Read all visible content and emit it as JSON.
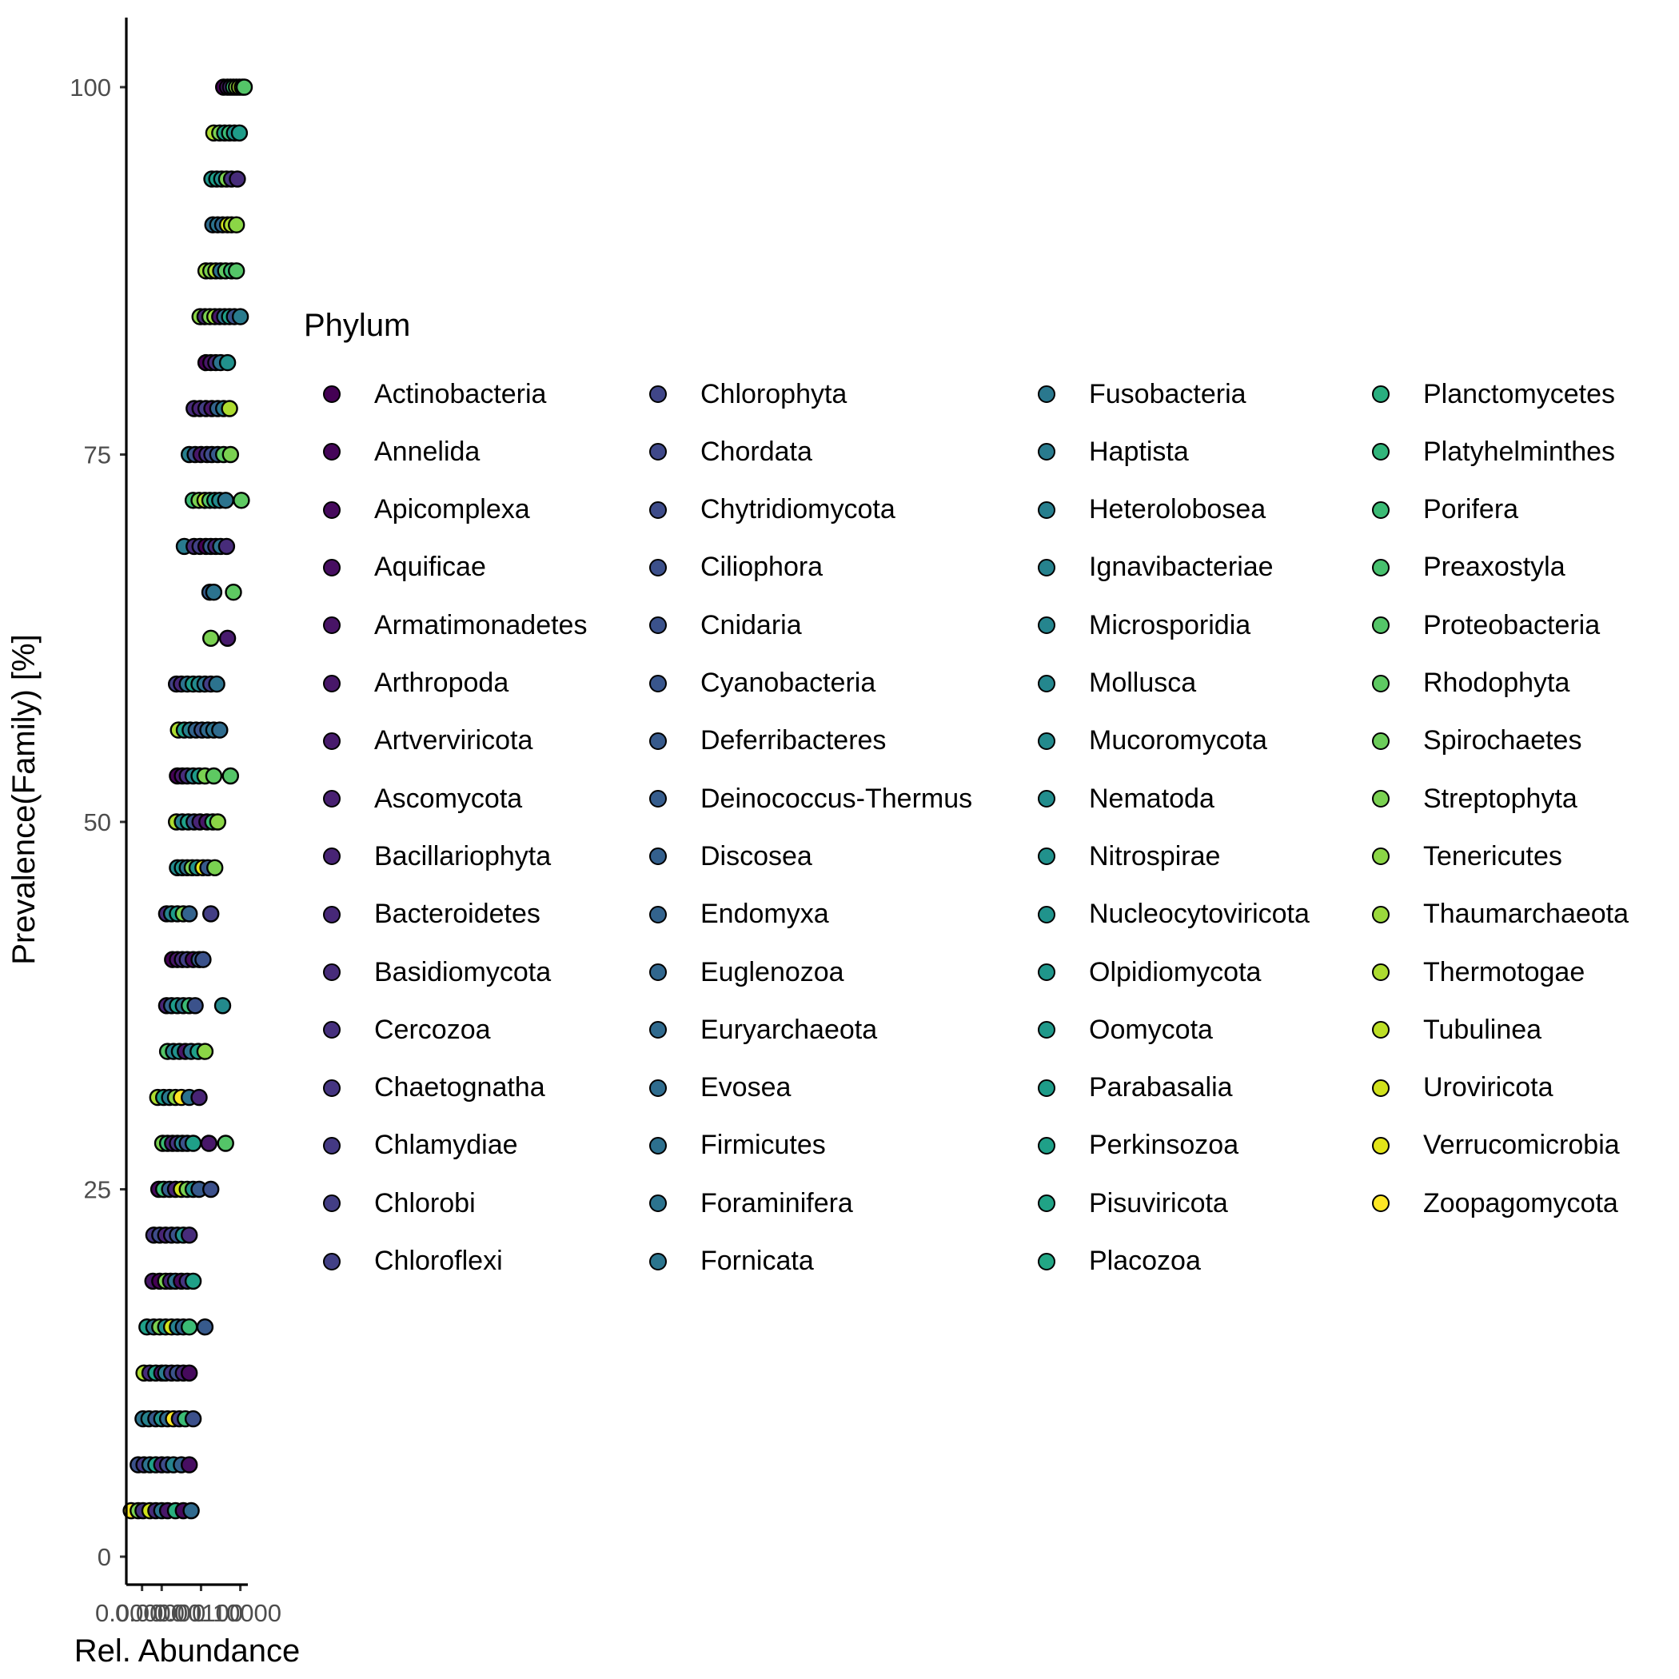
{
  "chart_data": {
    "type": "scatter",
    "xlabel": "Rel. Abundance",
    "ylabel": "Prevalence(Family) [%]",
    "xtick_labels_overlapping": [
      "0.00000",
      "0.00001",
      "0.00100",
      "0.10000"
    ],
    "y_ticks": [
      0,
      25,
      50,
      75,
      100
    ],
    "ylim": [
      -2,
      105
    ],
    "x_scale": "log10",
    "xlim_log10": [
      -6.8,
      -0.7
    ],
    "grid": false,
    "legend": {
      "title": "Phylum",
      "placement": "right",
      "columns": 4,
      "entries": [
        {
          "name": "Actinobacteria",
          "color": "#440154"
        },
        {
          "name": "Annelida",
          "color": "#450559"
        },
        {
          "name": "Apicomplexa",
          "color": "#460a5d"
        },
        {
          "name": "Aquificae",
          "color": "#470e61"
        },
        {
          "name": "Armatimonadetes",
          "color": "#481466"
        },
        {
          "name": "Arthropoda",
          "color": "#481769"
        },
        {
          "name": "Artverviricota",
          "color": "#481b6d"
        },
        {
          "name": "Ascomycota",
          "color": "#482071"
        },
        {
          "name": "Bacillariophyta",
          "color": "#482475"
        },
        {
          "name": "Bacteroidetes",
          "color": "#472878"
        },
        {
          "name": "Basidiomycota",
          "color": "#472c7a"
        },
        {
          "name": "Cercozoa",
          "color": "#46307e"
        },
        {
          "name": "Chaetognatha",
          "color": "#453581"
        },
        {
          "name": "Chlamydiae",
          "color": "#443983"
        },
        {
          "name": "Chlorobi",
          "color": "#433e85"
        },
        {
          "name": "Chloroflexi",
          "color": "#424086"
        },
        {
          "name": "Chlorophyta",
          "color": "#404688"
        },
        {
          "name": "Chordata",
          "color": "#3f4889"
        },
        {
          "name": "Chytridiomycota",
          "color": "#3e4c8a"
        },
        {
          "name": "Ciliophora",
          "color": "#3c508b"
        },
        {
          "name": "Cnidaria",
          "color": "#3b528b"
        },
        {
          "name": "Cyanobacteria",
          "color": "#39568c"
        },
        {
          "name": "Deferribacteres",
          "color": "#375a8c"
        },
        {
          "name": "Deinococcus-Thermus",
          "color": "#365d8d"
        },
        {
          "name": "Discosea",
          "color": "#34608d"
        },
        {
          "name": "Endomyxa",
          "color": "#33638d"
        },
        {
          "name": "Euglenozoa",
          "color": "#31678e"
        },
        {
          "name": "Euryarchaeota",
          "color": "#306a8e"
        },
        {
          "name": "Evosea",
          "color": "#2f6c8e"
        },
        {
          "name": "Firmicutes",
          "color": "#2d708e"
        },
        {
          "name": "Foraminifera",
          "color": "#2c738e"
        },
        {
          "name": "Fornicata",
          "color": "#2b758e"
        },
        {
          "name": "Fusobacteria",
          "color": "#2a788e"
        },
        {
          "name": "Haptista",
          "color": "#297b8e"
        },
        {
          "name": "Heterolobosea",
          "color": "#277f8e"
        },
        {
          "name": "Ignavibacteriae",
          "color": "#26828e"
        },
        {
          "name": "Microsporidia",
          "color": "#25858e"
        },
        {
          "name": "Mollusca",
          "color": "#24878e"
        },
        {
          "name": "Mucoromycota",
          "color": "#238a8d"
        },
        {
          "name": "Nematoda",
          "color": "#228d8d"
        },
        {
          "name": "Nitrospirae",
          "color": "#21918c"
        },
        {
          "name": "Nucleocytoviricota",
          "color": "#20938c"
        },
        {
          "name": "Olpidiomycota",
          "color": "#1f968b"
        },
        {
          "name": "Oomycota",
          "color": "#1f998a"
        },
        {
          "name": "Parabasalia",
          "color": "#1e9c89"
        },
        {
          "name": "Perkinsozoa",
          "color": "#1fa088"
        },
        {
          "name": "Pisuviricota",
          "color": "#20a386"
        },
        {
          "name": "Placozoa",
          "color": "#22a785"
        },
        {
          "name": "Planctomycetes",
          "color": "#29af7f"
        },
        {
          "name": "Platyhelminthes",
          "color": "#31b57b"
        },
        {
          "name": "Porifera",
          "color": "#3bbb75"
        },
        {
          "name": "Preaxostyla",
          "color": "#47c16e"
        },
        {
          "name": "Proteobacteria",
          "color": "#54c568"
        },
        {
          "name": "Rhodophyta",
          "color": "#5ec962"
        },
        {
          "name": "Spirochaetes",
          "color": "#6ccd5a"
        },
        {
          "name": "Streptophyta",
          "color": "#7ad151"
        },
        {
          "name": "Tenericutes",
          "color": "#8bd646"
        },
        {
          "name": "Thaumarchaeota",
          "color": "#9bd93c"
        },
        {
          "name": "Thermotogae",
          "color": "#addc30"
        },
        {
          "name": "Tubulinea",
          "color": "#bddf26"
        },
        {
          "name": "Uroviricota",
          "color": "#d0e11c"
        },
        {
          "name": "Verrucomicrobia",
          "color": "#e2e418"
        },
        {
          "name": "Zoopagomycota",
          "color": "#fde725"
        }
      ]
    },
    "prevalence_levels": [
      3.13,
      6.25,
      9.38,
      12.5,
      15.63,
      18.75,
      21.88,
      25,
      28.13,
      31.25,
      34.38,
      37.5,
      40.63,
      43.75,
      46.88,
      50,
      53.13,
      56.25,
      59.38,
      62.5,
      65.63,
      68.75,
      71.88,
      75,
      78.13,
      81.25,
      84.38,
      87.5,
      90.63,
      93.75,
      96.88,
      100
    ],
    "points": [
      {
        "y": 3.13,
        "x": [
          -6.55,
          -6.2,
          -5.95,
          -5.6,
          -5.3,
          -5.0,
          -4.7,
          -4.3,
          -3.9,
          -3.5
        ],
        "c": [
          62,
          55,
          12,
          60,
          10,
          30,
          5,
          48,
          2,
          27
        ]
      },
      {
        "y": 6.25,
        "x": [
          -6.2,
          -5.9,
          -5.6,
          -5.3,
          -5.0,
          -4.7,
          -4.4,
          -4.0,
          -3.6
        ],
        "c": [
          20,
          13,
          30,
          45,
          8,
          18,
          35,
          24,
          3
        ]
      },
      {
        "y": 9.38,
        "x": [
          -5.95,
          -5.65,
          -5.3,
          -5.0,
          -4.7,
          -4.4,
          -4.1,
          -3.8,
          -3.4
        ],
        "c": [
          30,
          35,
          22,
          40,
          27,
          62,
          15,
          50,
          19
        ]
      },
      {
        "y": 12.5,
        "x": [
          -5.9,
          -5.6,
          -5.3,
          -5.0,
          -4.8,
          -4.5,
          -4.2,
          -3.9,
          -3.6
        ],
        "c": [
          58,
          10,
          45,
          5,
          33,
          12,
          20,
          8,
          2
        ]
      },
      {
        "y": 15.63,
        "x": [
          -5.75,
          -5.4,
          -5.1,
          -4.8,
          -4.5,
          -4.2,
          -3.9,
          -3.6,
          -2.8
        ],
        "c": [
          45,
          30,
          55,
          40,
          60,
          35,
          25,
          50,
          22
        ]
      },
      {
        "y": 18.75,
        "x": [
          -5.45,
          -5.1,
          -4.8,
          -4.55,
          -4.3,
          -4.0,
          -3.7,
          -3.4
        ],
        "c": [
          5,
          0,
          55,
          8,
          30,
          2,
          12,
          45
        ]
      },
      {
        "y": 21.88,
        "x": [
          -5.4,
          -5.1,
          -4.8,
          -4.5,
          -4.2,
          -3.9,
          -3.6
        ],
        "c": [
          12,
          18,
          8,
          15,
          20,
          40,
          10
        ]
      },
      {
        "y": 25,
        "x": [
          -5.15,
          -4.9,
          -4.6,
          -4.3,
          -4.0,
          -3.7,
          -3.4,
          -3.1,
          -2.5
        ],
        "c": [
          2,
          50,
          24,
          8,
          60,
          55,
          40,
          22,
          19
        ]
      },
      {
        "y": 28.13,
        "x": [
          -4.95,
          -4.7,
          -4.45,
          -4.2,
          -3.95,
          -3.7,
          -3.4,
          -2.6,
          -1.75
        ],
        "c": [
          55,
          50,
          8,
          12,
          35,
          20,
          45,
          5,
          52
        ]
      },
      {
        "y": 31.25,
        "x": [
          -5.2,
          -4.9,
          -4.6,
          -4.3,
          -4.0,
          -3.6,
          -3.1
        ],
        "c": [
          58,
          45,
          33,
          56,
          62,
          30,
          8
        ]
      },
      {
        "y": 34.38,
        "x": [
          -4.7,
          -4.4,
          -4.1,
          -3.8,
          -3.5,
          -3.15,
          -2.8
        ],
        "c": [
          52,
          35,
          40,
          5,
          30,
          45,
          56
        ]
      },
      {
        "y": 37.5,
        "x": [
          -4.75,
          -4.5,
          -4.2,
          -3.9,
          -3.6,
          -3.3,
          -1.9
        ],
        "c": [
          8,
          25,
          44,
          30,
          50,
          20,
          38
        ]
      },
      {
        "y": 40.63,
        "x": [
          -4.45,
          -4.2,
          -3.95,
          -3.7,
          -3.4,
          -3.1,
          -2.9
        ],
        "c": [
          0,
          5,
          10,
          15,
          2,
          22,
          20
        ]
      },
      {
        "y": 43.75,
        "x": [
          -4.75,
          -4.5,
          -4.2,
          -3.9,
          -3.6,
          -2.5
        ],
        "c": [
          10,
          35,
          44,
          55,
          25,
          14
        ]
      },
      {
        "y": 46.88,
        "x": [
          -4.2,
          -3.95,
          -3.7,
          -3.45,
          -3.2,
          -2.9,
          -2.65,
          -2.3
        ],
        "c": [
          38,
          42,
          30,
          55,
          40,
          61,
          22,
          55
        ]
      },
      {
        "y": 50,
        "x": [
          -4.25,
          -3.95,
          -3.65,
          -3.35,
          -3.05,
          -2.7,
          -2.4,
          -2.15
        ],
        "c": [
          58,
          35,
          45,
          20,
          8,
          5,
          50,
          56
        ]
      },
      {
        "y": 53.13,
        "x": [
          -4.2,
          -3.95,
          -3.7,
          -3.4,
          -3.1,
          -2.8,
          -2.35,
          -1.5
        ],
        "c": [
          0,
          5,
          10,
          35,
          44,
          55,
          53,
          52
        ]
      },
      {
        "y": 56.25,
        "x": [
          -4.15,
          -3.85,
          -3.55,
          -3.25,
          -2.95,
          -2.65,
          -2.35,
          -2.05
        ],
        "c": [
          58,
          45,
          35,
          25,
          20,
          27,
          30,
          28
        ]
      },
      {
        "y": 59.38,
        "x": [
          -4.25,
          -4.0,
          -3.7,
          -3.4,
          -3.1,
          -2.8,
          -2.5,
          -2.2
        ],
        "c": [
          15,
          9,
          30,
          44,
          38,
          30,
          14,
          30
        ]
      },
      {
        "y": 62.5,
        "x": [
          -2.5,
          -1.65
        ],
        "c": [
          55,
          6
        ]
      },
      {
        "y": 65.63,
        "x": [
          -2.55,
          -2.35,
          -1.35
        ],
        "c": [
          23,
          30,
          53
        ]
      },
      {
        "y": 68.75,
        "x": [
          -3.85,
          -3.35,
          -3.05,
          -2.75,
          -2.5,
          -2.25,
          -2.0,
          -1.7
        ],
        "c": [
          33,
          10,
          15,
          0,
          22,
          8,
          30,
          10
        ]
      },
      {
        "y": 71.88,
        "x": [
          -3.4,
          -3.1,
          -2.8,
          -2.55,
          -2.3,
          -2.05,
          -1.75,
          -0.95
        ],
        "c": [
          50,
          55,
          58,
          52,
          45,
          38,
          30,
          53
        ]
      },
      {
        "y": 75,
        "x": [
          -3.6,
          -3.3,
          -3.0,
          -2.7,
          -2.45,
          -2.15,
          -1.85,
          -1.5
        ],
        "c": [
          34,
          20,
          5,
          12,
          18,
          22,
          53,
          55
        ]
      },
      {
        "y": 78.13,
        "x": [
          -3.35,
          -3.05,
          -2.75,
          -2.45,
          -2.15,
          -1.85,
          -1.55
        ],
        "c": [
          10,
          8,
          14,
          5,
          25,
          32,
          58
        ]
      },
      {
        "y": 81.25,
        "x": [
          -2.75,
          -2.5,
          -2.25,
          -2.0,
          -1.65
        ],
        "c": [
          0,
          5,
          10,
          30,
          40
        ]
      },
      {
        "y": 84.38,
        "x": [
          -3.05,
          -2.8,
          -2.55,
          -2.3,
          -2.05,
          -1.8,
          -1.55,
          -1.3,
          -1.0
        ],
        "c": [
          56,
          10,
          55,
          57,
          5,
          30,
          45,
          20,
          33
        ]
      },
      {
        "y": 87.5,
        "x": [
          -2.75,
          -2.5,
          -2.25,
          -2.0,
          -1.75,
          -1.45,
          -1.2
        ],
        "c": [
          57,
          55,
          58,
          30,
          53,
          50,
          52
        ]
      },
      {
        "y": 90.63,
        "x": [
          -2.4,
          -2.15,
          -1.9,
          -1.65,
          -1.45,
          -1.2
        ],
        "c": [
          28,
          30,
          26,
          60,
          58,
          56
        ]
      },
      {
        "y": 93.75,
        "x": [
          -2.45,
          -2.2,
          -1.95,
          -1.7,
          -1.45,
          -1.15
        ],
        "c": [
          42,
          45,
          40,
          55,
          12,
          10
        ]
      },
      {
        "y": 96.88,
        "x": [
          -2.35,
          -2.05,
          -1.8,
          -1.55,
          -1.3,
          -1.05
        ],
        "c": [
          58,
          55,
          45,
          50,
          40,
          44
        ]
      },
      {
        "y": 100,
        "x": [
          -1.85,
          -1.65,
          -1.5,
          -1.35,
          -1.2,
          -1.05,
          -0.9,
          -0.8
        ],
        "c": [
          0,
          5,
          10,
          50,
          56,
          58,
          60,
          52
        ]
      }
    ]
  }
}
